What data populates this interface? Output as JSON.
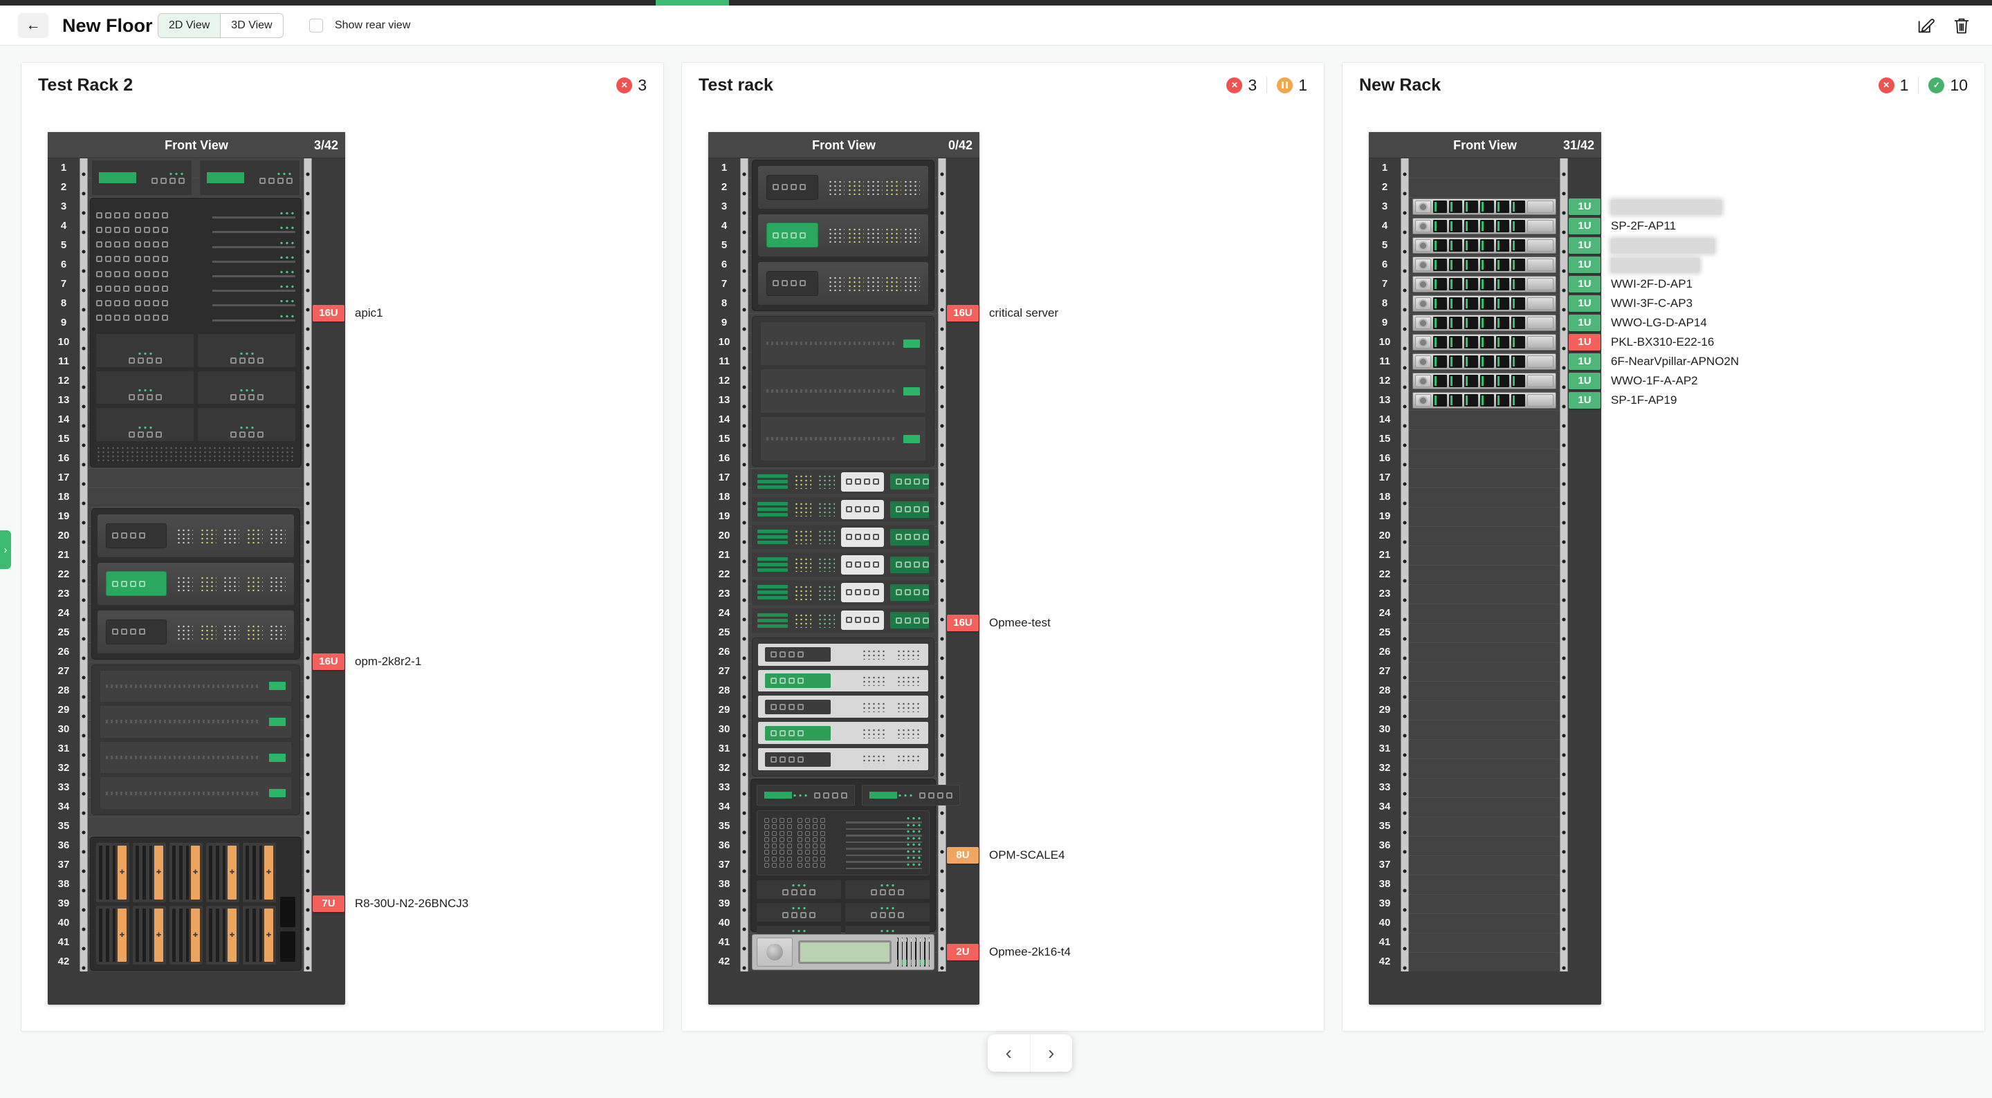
{
  "app": {
    "title": "New Floor",
    "back": "←",
    "views": [
      {
        "label": "2D View",
        "active": true
      },
      {
        "label": "3D View",
        "active": false
      }
    ],
    "rear_view_label": "Show rear view",
    "rear_view_checked": false,
    "progress_color": "#3dbb72",
    "expand_handle": "›",
    "pagination": {
      "prev": "‹",
      "next": "›"
    }
  },
  "status_colors": {
    "error": "#ef5350",
    "warning": "#f2a74b",
    "success": "#47b26b"
  },
  "badge_colors": {
    "red": "#f4615d",
    "orange": "#f0a662",
    "green": "#4db679"
  },
  "racks": [
    {
      "name": "Test Rack 2",
      "status": [
        {
          "type": "error",
          "count": 3
        }
      ],
      "view_label": "Front View",
      "occupancy": "3/42",
      "units": 42,
      "devices": [
        {
          "kind": "mods2",
          "from": 1,
          "to": 2
        },
        {
          "kind": "apic",
          "from": 3,
          "to": 16,
          "label": "apic1",
          "size": "16U",
          "severity": "red",
          "badge_unit": 8.5
        },
        {
          "kind": "srv3stor",
          "stor_rows": 4,
          "from": 19,
          "to": 34,
          "label": "opm-2k8r2-1",
          "size": "16U",
          "severity": "red",
          "badge_unit": 26.5
        },
        {
          "kind": "blades",
          "from": 36,
          "to": 42,
          "label": "R8-30U-N2-26BNCJ3",
          "size": "7U",
          "severity": "red",
          "badge_unit": 39
        }
      ]
    },
    {
      "name": "Test rack",
      "status": [
        {
          "type": "error",
          "count": 3
        },
        {
          "type": "warning",
          "count": 1
        }
      ],
      "view_label": "Front View",
      "occupancy": "0/42",
      "units": 42,
      "devices": [
        {
          "kind": "srv3stor",
          "stor_rows": 3,
          "from": 1,
          "to": 16,
          "label": "critical server",
          "size": "16U",
          "severity": "red",
          "badge_unit": 8.5
        },
        {
          "kind": "swwhite",
          "from": 17,
          "to": 32,
          "label": "Opmee-test",
          "size": "16U",
          "severity": "red",
          "badge_unit": 24.5
        },
        {
          "kind": "scale",
          "from": 33,
          "to": 40,
          "label": "OPM-SCALE4",
          "size": "8U",
          "severity": "orange",
          "badge_unit": 36.5
        },
        {
          "kind": "drive2u",
          "from": 41,
          "to": 42,
          "label": "Opmee-2k16-t4",
          "size": "2U",
          "severity": "red",
          "badge_unit": 41.5
        }
      ]
    },
    {
      "name": "New Rack",
      "status": [
        {
          "type": "error",
          "count": 1
        },
        {
          "type": "success",
          "count": 10
        }
      ],
      "view_label": "Front View",
      "occupancy": "31/42",
      "units": 42,
      "devices": [
        {
          "kind": "server1u",
          "from": 3,
          "to": 3,
          "label": "",
          "redacted": true,
          "size": "1U",
          "severity": "green",
          "badge_unit": 3
        },
        {
          "kind": "server1u",
          "from": 4,
          "to": 4,
          "label": "SP-2F-AP11",
          "size": "1U",
          "severity": "green",
          "badge_unit": 4
        },
        {
          "kind": "server1u",
          "from": 5,
          "to": 5,
          "label": "",
          "redacted": true,
          "size": "1U",
          "severity": "green",
          "badge_unit": 5
        },
        {
          "kind": "server1u",
          "from": 6,
          "to": 6,
          "label": "",
          "redacted": true,
          "size": "1U",
          "severity": "green",
          "badge_unit": 6
        },
        {
          "kind": "server1u",
          "from": 7,
          "to": 7,
          "label": "WWI-2F-D-AP1",
          "size": "1U",
          "severity": "green",
          "badge_unit": 7
        },
        {
          "kind": "server1u",
          "from": 8,
          "to": 8,
          "label": "WWI-3F-C-AP3",
          "size": "1U",
          "severity": "green",
          "badge_unit": 8
        },
        {
          "kind": "server1u",
          "from": 9,
          "to": 9,
          "label": "WWO-LG-D-AP14",
          "size": "1U",
          "severity": "green",
          "badge_unit": 9
        },
        {
          "kind": "server1u",
          "from": 10,
          "to": 10,
          "label": "PKL-BX310-E22-16",
          "size": "1U",
          "severity": "red",
          "badge_unit": 10
        },
        {
          "kind": "server1u",
          "from": 11,
          "to": 11,
          "label": "6F-NearVpillar-APNO2N",
          "size": "1U",
          "severity": "green",
          "badge_unit": 11
        },
        {
          "kind": "server1u",
          "from": 12,
          "to": 12,
          "label": "WWO-1F-A-AP2",
          "size": "1U",
          "severity": "green",
          "badge_unit": 12
        },
        {
          "kind": "server1u",
          "from": 13,
          "to": 13,
          "label": "SP-1F-AP19",
          "size": "1U",
          "severity": "green",
          "badge_unit": 13
        }
      ]
    }
  ]
}
